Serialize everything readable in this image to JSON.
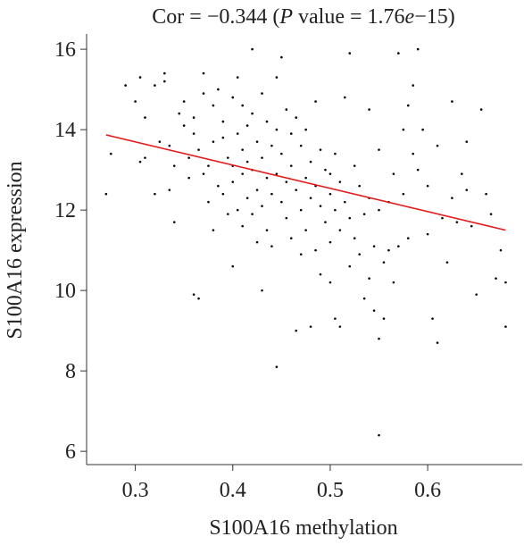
{
  "chart_data": {
    "type": "scatter",
    "title": [
      "Cor = −0.344 (",
      "P",
      " value = 1.76",
      "e",
      "−15)"
    ],
    "x_label": "S100A16 methylation",
    "y_label": "S100A16 expression",
    "color": "#000000",
    "x": [
      0.27,
      0.275,
      0.29,
      0.3,
      0.305,
      0.31,
      0.305,
      0.31,
      0.32,
      0.32,
      0.325,
      0.33,
      0.33,
      0.335,
      0.335,
      0.34,
      0.34,
      0.345,
      0.35,
      0.35,
      0.355,
      0.355,
      0.36,
      0.36,
      0.36,
      0.365,
      0.365,
      0.37,
      0.37,
      0.37,
      0.375,
      0.375,
      0.38,
      0.38,
      0.38,
      0.385,
      0.385,
      0.39,
      0.39,
      0.39,
      0.395,
      0.395,
      0.4,
      0.4,
      0.4,
      0.4,
      0.405,
      0.405,
      0.405,
      0.41,
      0.41,
      0.41,
      0.41,
      0.415,
      0.415,
      0.415,
      0.42,
      0.42,
      0.42,
      0.42,
      0.425,
      0.425,
      0.425,
      0.43,
      0.43,
      0.43,
      0.43,
      0.435,
      0.435,
      0.435,
      0.44,
      0.44,
      0.44,
      0.445,
      0.445,
      0.445,
      0.445,
      0.45,
      0.45,
      0.45,
      0.455,
      0.455,
      0.455,
      0.46,
      0.46,
      0.46,
      0.465,
      0.465,
      0.465,
      0.47,
      0.47,
      0.47,
      0.475,
      0.475,
      0.475,
      0.48,
      0.48,
      0.48,
      0.485,
      0.485,
      0.485,
      0.49,
      0.49,
      0.49,
      0.495,
      0.495,
      0.5,
      0.5,
      0.5,
      0.5,
      0.505,
      0.505,
      0.505,
      0.51,
      0.51,
      0.51,
      0.515,
      0.515,
      0.52,
      0.52,
      0.52,
      0.525,
      0.525,
      0.53,
      0.53,
      0.535,
      0.535,
      0.54,
      0.54,
      0.54,
      0.545,
      0.545,
      0.55,
      0.55,
      0.55,
      0.55,
      0.555,
      0.555,
      0.56,
      0.56,
      0.565,
      0.565,
      0.57,
      0.57,
      0.575,
      0.575,
      0.58,
      0.58,
      0.585,
      0.585,
      0.59,
      0.59,
      0.595,
      0.6,
      0.6,
      0.605,
      0.61,
      0.61,
      0.615,
      0.62,
      0.625,
      0.625,
      0.63,
      0.635,
      0.64,
      0.64,
      0.645,
      0.65,
      0.655,
      0.66,
      0.665,
      0.67,
      0.675,
      0.68,
      0.68
    ],
    "y": [
      12.4,
      13.4,
      15.1,
      14.7,
      13.2,
      13.3,
      15.3,
      14.3,
      15.1,
      12.4,
      13.7,
      15.4,
      15.2,
      12.5,
      13.6,
      13.1,
      11.7,
      14.4,
      14.7,
      14.1,
      13.3,
      12.8,
      14.3,
      13.9,
      9.9,
      9.8,
      13.5,
      15.4,
      14.9,
      12.9,
      13.1,
      12.2,
      14.6,
      13.7,
      11.5,
      15.0,
      12.6,
      14.2,
      13.8,
      12.4,
      13.3,
      11.9,
      14.8,
      13.1,
      12.7,
      10.6,
      15.3,
      13.9,
      12.0,
      14.6,
      13.5,
      12.9,
      11.6,
      14.1,
      13.2,
      12.3,
      16.0,
      14.4,
      13.0,
      11.9,
      13.7,
      12.5,
      11.2,
      14.9,
      13.3,
      12.1,
      10.0,
      14.2,
      12.8,
      11.5,
      13.6,
      12.4,
      11.1,
      15.3,
      14.0,
      12.9,
      8.1,
      13.4,
      12.2,
      15.8,
      14.5,
      12.7,
      11.8,
      13.9,
      13.1,
      11.3,
      14.3,
      12.5,
      9.0,
      13.6,
      12.0,
      10.9,
      14.0,
      12.8,
      11.5,
      13.2,
      12.3,
      9.1,
      14.7,
      12.6,
      11.0,
      13.5,
      12.1,
      10.4,
      13.0,
      11.7,
      12.9,
      12.4,
      11.2,
      10.2,
      13.4,
      12.0,
      9.3,
      12.7,
      11.5,
      9.1,
      14.8,
      12.2,
      15.9,
      11.8,
      10.6,
      13.1,
      11.3,
      12.6,
      10.9,
      11.9,
      9.8,
      14.5,
      12.3,
      10.3,
      11.1,
      9.5,
      13.5,
      12.0,
      8.8,
      6.4,
      10.7,
      9.3,
      12.2,
      11.0,
      12.9,
      10.2,
      15.9,
      11.1,
      14.0,
      12.4,
      11.3,
      14.6,
      15.1,
      13.4,
      16.0,
      13.0,
      14.0,
      12.6,
      11.4,
      9.3,
      8.7,
      13.6,
      11.8,
      10.7,
      14.7,
      12.3,
      11.7,
      12.9,
      13.7,
      12.5,
      11.6,
      9.9,
      14.5,
      12.4,
      11.9,
      10.3,
      11.0,
      10.2,
      9.1
    ],
    "trend_line": {
      "x": [
        0.27,
        0.68
      ],
      "y": [
        13.87,
        11.5
      ],
      "color": "#e31a1c"
    },
    "xlim": [
      0.25,
      0.697
    ],
    "ylim": [
      5.67,
      16.38
    ],
    "xticks": [
      0.3,
      0.4,
      0.5,
      0.6
    ],
    "yticks": [
      6,
      8,
      10,
      12,
      14,
      16
    ]
  }
}
